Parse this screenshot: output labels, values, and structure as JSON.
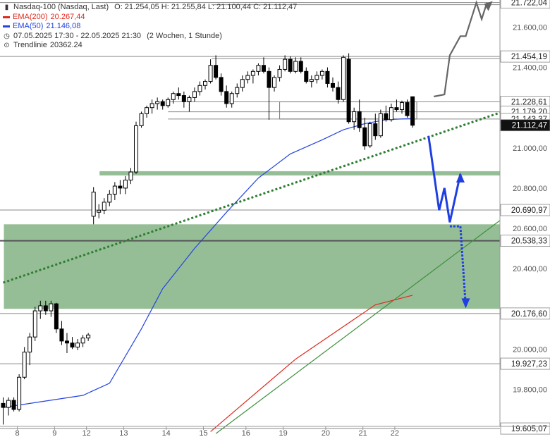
{
  "legend": {
    "instrument": "Nasdaq-100 (Nasdaq, Last)",
    "ohlc": "O: 21.254,05  H: 21.255,84  L: 21.100,44  C: 21.112,47",
    "ema200_label": "EMA(200)",
    "ema200_value": "20.267,44",
    "ema50_label": "EMA(50)",
    "ema50_value": "21.146,08",
    "period": "07.05.2025 17:30 - 22.05.2025 21:30",
    "period_note": "(2 Wochen, 1 Stunde)",
    "trendline_label": "Trendlinie",
    "trendline_value": "20362.24",
    "icons": [
      "candlestick-icon",
      "clock-icon",
      "trendline-icon"
    ]
  },
  "colors": {
    "ema200": "#e0291d",
    "ema50": "#2444e0",
    "trendline_dotted": "#2e7d32",
    "trendline_solid": "#3d8f3d",
    "zone": "#7fb07f",
    "forecast": "#1f3fe0",
    "forecast_alt": "#666666",
    "price_badge": "#111111"
  },
  "chart_data": {
    "type": "candlestick",
    "instrument": "Nasdaq-100",
    "x_tick_labels": [
      "8",
      "9",
      "12",
      "13",
      "14",
      "15",
      "16",
      "19",
      "20",
      "21",
      "22"
    ],
    "y_tick_labels": [
      "21.600,00",
      "21.400,00",
      "21.000,00",
      "20.800,00",
      "20.600,00",
      "20.400,00",
      "20.000,00",
      "19.800,00"
    ],
    "y_ticks": [
      21600,
      21400,
      21000,
      20800,
      20600,
      20400,
      20000,
      19800
    ],
    "ylim": [
      19580,
      21760
    ],
    "horizontal_levels": [
      {
        "value": 21722.04,
        "label": "21.722,04"
      },
      {
        "value": 21454.19,
        "label": "21.454,19"
      },
      {
        "value": 21228.61,
        "label": "21.228,61"
      },
      {
        "value": 21179.2,
        "label": "21.179,20"
      },
      {
        "value": 21143.37,
        "label": "21.143,37"
      },
      {
        "value": 20690.97,
        "label": "20.690,97"
      },
      {
        "value": 20538.33,
        "label": "20.538,33"
      },
      {
        "value": 20176.6,
        "label": "20.176,60"
      },
      {
        "value": 19927.23,
        "label": "19.927,23"
      },
      {
        "value": 19605.07,
        "label": "19.605,07"
      }
    ],
    "current_price": {
      "value": 21112.47,
      "label": "21.112,47"
    },
    "zones": [
      {
        "from": 20864,
        "to": 20884,
        "start_bar": 18
      },
      {
        "from": 20200,
        "to": 20620,
        "start_bar": 0
      }
    ],
    "candles": [
      [
        19730,
        19760,
        19625,
        19710
      ],
      [
        19710,
        19760,
        19670,
        19745
      ],
      [
        19745,
        19760,
        19690,
        19700
      ],
      [
        19700,
        19875,
        19690,
        19860
      ],
      [
        19860,
        20010,
        19850,
        19985
      ],
      [
        19985,
        20080,
        19920,
        20060
      ],
      [
        20060,
        20210,
        20040,
        20190
      ],
      [
        20190,
        20240,
        20150,
        20215
      ],
      [
        20215,
        20240,
        20170,
        20190
      ],
      [
        20190,
        20240,
        20160,
        20225
      ],
      [
        20225,
        20230,
        20080,
        20100
      ],
      [
        20100,
        20140,
        20020,
        20040
      ],
      [
        20040,
        20080,
        19980,
        20030
      ],
      [
        20030,
        20060,
        20000,
        20010
      ],
      [
        20010,
        20050,
        19995,
        20030
      ],
      [
        20030,
        20070,
        20010,
        20055
      ],
      [
        20055,
        20080,
        20040,
        20070
      ],
      [
        20660,
        20805,
        20620,
        20780
      ],
      [
        20680,
        20720,
        20650,
        20690
      ],
      [
        20690,
        20750,
        20670,
        20730
      ],
      [
        20730,
        20790,
        20710,
        20770
      ],
      [
        20770,
        20830,
        20740,
        20810
      ],
      [
        20810,
        20840,
        20770,
        20800
      ],
      [
        20800,
        20860,
        20770,
        20840
      ],
      [
        20840,
        20900,
        20820,
        20880
      ],
      [
        20880,
        21130,
        20870,
        21110
      ],
      [
        21110,
        21180,
        21100,
        21170
      ],
      [
        21170,
        21210,
        21150,
        21200
      ],
      [
        21200,
        21240,
        21170,
        21220
      ],
      [
        21220,
        21250,
        21190,
        21230
      ],
      [
        21230,
        21240,
        21190,
        21210
      ],
      [
        21210,
        21250,
        21200,
        21240
      ],
      [
        21240,
        21280,
        21220,
        21270
      ],
      [
        21270,
        21300,
        21240,
        21260
      ],
      [
        21260,
        21280,
        21200,
        21230
      ],
      [
        21230,
        21260,
        21180,
        21250
      ],
      [
        21250,
        21300,
        21230,
        21280
      ],
      [
        21280,
        21330,
        21260,
        21310
      ],
      [
        21310,
        21340,
        21290,
        21330
      ],
      [
        21330,
        21440,
        21320,
        21410
      ],
      [
        21410,
        21460,
        21340,
        21350
      ],
      [
        21350,
        21370,
        21260,
        21280
      ],
      [
        21280,
        21310,
        21200,
        21220
      ],
      [
        21220,
        21280,
        21200,
        21270
      ],
      [
        21270,
        21320,
        21250,
        21300
      ],
      [
        21300,
        21360,
        21280,
        21340
      ],
      [
        21340,
        21380,
        21320,
        21360
      ],
      [
        21360,
        21390,
        21320,
        21380
      ],
      [
        21380,
        21420,
        21360,
        21410
      ],
      [
        21410,
        21450,
        21370,
        21380
      ],
      [
        21380,
        21400,
        21140,
        21300
      ],
      [
        21300,
        21360,
        21280,
        21350
      ],
      [
        21350,
        21410,
        21330,
        21390
      ],
      [
        21390,
        21460,
        21380,
        21440
      ],
      [
        21440,
        21455,
        21370,
        21380
      ],
      [
        21380,
        21450,
        21370,
        21430
      ],
      [
        21430,
        21450,
        21370,
        21380
      ],
      [
        21380,
        21400,
        21320,
        21330
      ],
      [
        21330,
        21360,
        21300,
        21340
      ],
      [
        21340,
        21380,
        21320,
        21360
      ],
      [
        21360,
        21390,
        21340,
        21380
      ],
      [
        21380,
        21400,
        21300,
        21320
      ],
      [
        21320,
        21350,
        21280,
        21300
      ],
      [
        21300,
        21330,
        21220,
        21240
      ],
      [
        21240,
        21460,
        21230,
        21450
      ],
      [
        21440,
        21470,
        21120,
        21130
      ],
      [
        21130,
        21200,
        21090,
        21180
      ],
      [
        21180,
        21240,
        21080,
        21100
      ],
      [
        21100,
        21150,
        20990,
        21010
      ],
      [
        21010,
        21130,
        21000,
        21120
      ],
      [
        21120,
        21170,
        21040,
        21060
      ],
      [
        21060,
        21190,
        21050,
        21170
      ],
      [
        21170,
        21210,
        21130,
        21140
      ],
      [
        21140,
        21220,
        21130,
        21200
      ],
      [
        21200,
        21240,
        21180,
        21190
      ],
      [
        21190,
        21235,
        21170,
        21225
      ],
      [
        21225,
        21240,
        21150,
        21160
      ],
      [
        21254.05,
        21255.84,
        21100.44,
        21112.47
      ]
    ],
    "ema50": [
      [
        0,
        19710
      ],
      [
        15,
        19770
      ],
      [
        20,
        19830
      ],
      [
        26,
        20100
      ],
      [
        30,
        20300
      ],
      [
        36,
        20500
      ],
      [
        42,
        20680
      ],
      [
        48,
        20850
      ],
      [
        54,
        20970
      ],
      [
        60,
        21040
      ],
      [
        64,
        21090
      ],
      [
        68,
        21120
      ],
      [
        72,
        21140
      ],
      [
        77,
        21146.08
      ]
    ],
    "ema200": [
      [
        39,
        19590
      ],
      [
        55,
        19950
      ],
      [
        70,
        20220
      ],
      [
        77,
        20267.44
      ]
    ],
    "trendline_dotted": [
      [
        0,
        20330
      ],
      [
        94,
        21180
      ]
    ],
    "trendline_solid": [
      [
        40,
        19580
      ],
      [
        95,
        20670
      ]
    ],
    "forecast_blue": [
      [
        80,
        21060
      ],
      [
        82,
        20690
      ],
      [
        83,
        20800
      ],
      [
        84,
        20630
      ],
      [
        86,
        20870
      ]
    ],
    "forecast_blue_arrow": [
      [
        84,
        20610
      ],
      [
        86,
        20610
      ],
      [
        87,
        20210
      ]
    ],
    "forecast_grey": [
      [
        81,
        21255
      ],
      [
        83,
        21265
      ],
      [
        84,
        21460
      ],
      [
        86,
        21555
      ],
      [
        87,
        21555
      ],
      [
        89,
        21722
      ],
      [
        90,
        21640
      ],
      [
        91,
        21722
      ]
    ]
  }
}
